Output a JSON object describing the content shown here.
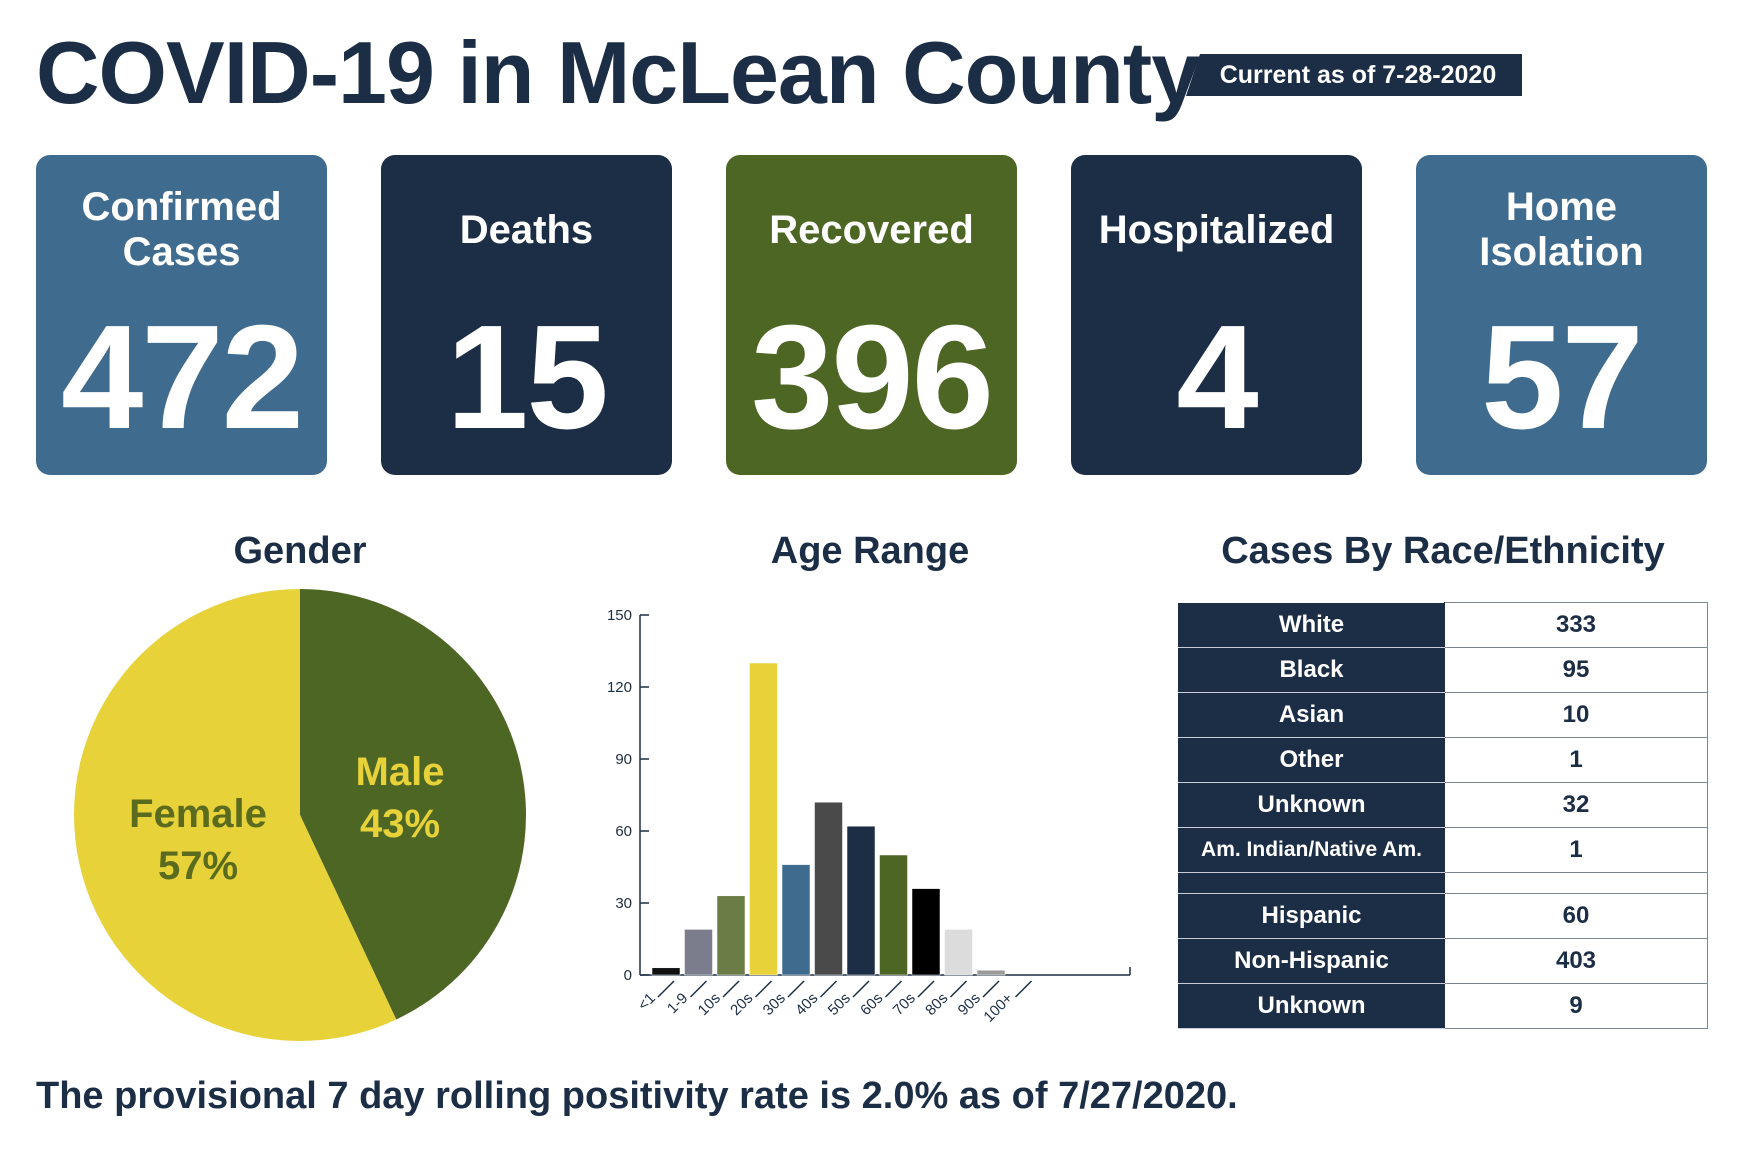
{
  "header": {
    "title": "COVID-19 in McLean County",
    "as_of": "Current as of 7-28-2020"
  },
  "stats": [
    {
      "label": "Confirmed\nCases",
      "value": "472",
      "color": "#3f6b8e"
    },
    {
      "label": "Deaths",
      "value": "15",
      "color": "#1c2e45"
    },
    {
      "label": "Recovered",
      "value": "396",
      "color": "#4e6624"
    },
    {
      "label": "Hospitalized",
      "value": "4",
      "color": "#1c2e45"
    },
    {
      "label": "Home\nIsolation",
      "value": "57",
      "color": "#3f6b8e"
    }
  ],
  "chart_data": [
    {
      "type": "pie",
      "title": "Gender",
      "slices": [
        {
          "label": "Male",
          "pct_label": "43%",
          "value": 43,
          "color": "#4e6624",
          "text_color": "#e8d23a"
        },
        {
          "label": "Female",
          "pct_label": "57%",
          "value": 57,
          "color": "#e8d23a",
          "text_color": "#5a6b1e"
        }
      ]
    },
    {
      "type": "bar",
      "title": "Age Range",
      "categories": [
        "<1",
        "1-9",
        "10s",
        "20s",
        "30s",
        "40s",
        "50s",
        "60s",
        "70s",
        "80s",
        "90s",
        "100+"
      ],
      "values": [
        3,
        19,
        33,
        130,
        46,
        72,
        62,
        50,
        36,
        19,
        2,
        0
      ],
      "colors": [
        "#111111",
        "#7b7d8c",
        "#6b7d46",
        "#e8d23a",
        "#3f6b8e",
        "#4a4a4a",
        "#1c2e45",
        "#4e6624",
        "#000000",
        "#dcdcdc",
        "#9a9a9a",
        "#dcdcdc"
      ],
      "ylim": [
        0,
        150
      ],
      "yticks": [
        0,
        30,
        60,
        90,
        120,
        150
      ]
    },
    {
      "type": "table",
      "title": "Cases By Race/Ethnicity",
      "race": [
        {
          "label": "White",
          "value": "333"
        },
        {
          "label": "Black",
          "value": "95"
        },
        {
          "label": "Asian",
          "value": "10"
        },
        {
          "label": "Other",
          "value": "1"
        },
        {
          "label": "Unknown",
          "value": "32"
        },
        {
          "label": "Am. Indian/Native Am.",
          "value": "1"
        }
      ],
      "ethnicity": [
        {
          "label": "Hispanic",
          "value": "60"
        },
        {
          "label": "Non-Hispanic",
          "value": "403"
        },
        {
          "label": "Unknown",
          "value": "9"
        }
      ]
    }
  ],
  "footer": {
    "text": "The provisional 7 day rolling positivity rate is 2.0% as of 7/27/2020."
  }
}
